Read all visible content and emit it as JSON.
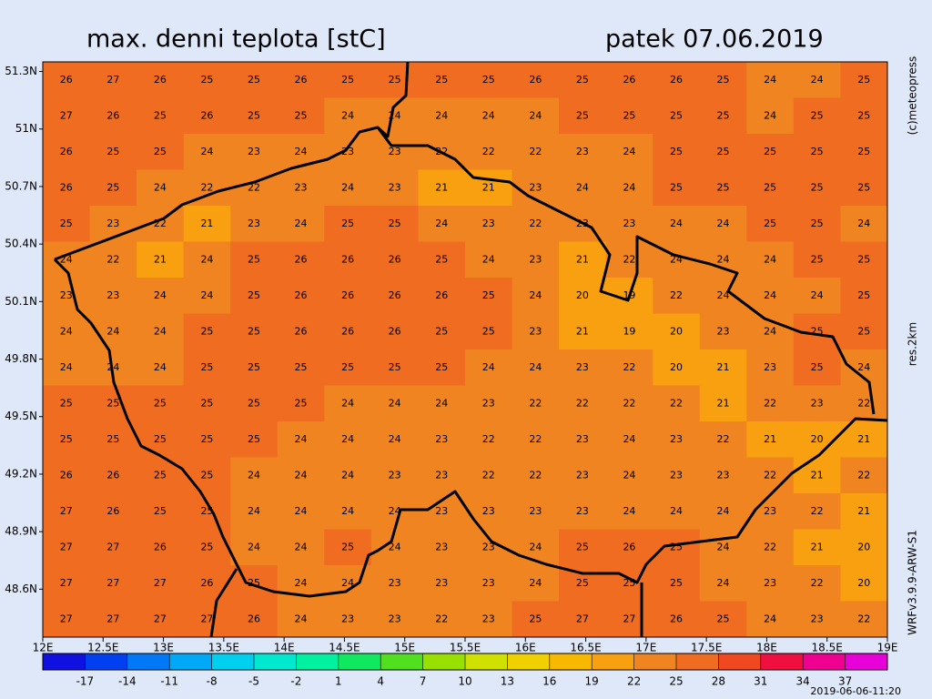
{
  "title": "max. denni teplota [stC]",
  "date": "patek 07.06.2019",
  "credits": [
    "(c)meteopress",
    "res.2km",
    "WRFv3.9.9-ARW-S1"
  ],
  "timestamp": "2019-06-06-11:20",
  "map": {
    "lon_range": [
      12,
      19
    ],
    "lat_range": [
      48.35,
      51.35
    ],
    "lon_ticks": [
      {
        "value": 12,
        "label": "12E"
      },
      {
        "value": 12.5,
        "label": "12.5E"
      },
      {
        "value": 13,
        "label": "13E"
      },
      {
        "value": 13.5,
        "label": "13.5E"
      },
      {
        "value": 14,
        "label": "14E"
      },
      {
        "value": 14.5,
        "label": "14.5E"
      },
      {
        "value": 15,
        "label": "15E"
      },
      {
        "value": 15.5,
        "label": "15.5E"
      },
      {
        "value": 16,
        "label": "16E"
      },
      {
        "value": 16.5,
        "label": "16.5E"
      },
      {
        "value": 17,
        "label": "17E"
      },
      {
        "value": 17.5,
        "label": "17.5E"
      },
      {
        "value": 18,
        "label": "18E"
      },
      {
        "value": 18.5,
        "label": "18.5E"
      },
      {
        "value": 19,
        "label": "19E"
      }
    ],
    "lat_ticks": [
      {
        "value": 51.3,
        "label": "51.3N"
      },
      {
        "value": 51,
        "label": "51N"
      },
      {
        "value": 50.7,
        "label": "50.7N"
      },
      {
        "value": 50.4,
        "label": "50.4N"
      },
      {
        "value": 50.1,
        "label": "50.1N"
      },
      {
        "value": 49.8,
        "label": "49.8N"
      },
      {
        "value": 49.5,
        "label": "49.5N"
      },
      {
        "value": 49.2,
        "label": "49.2N"
      },
      {
        "value": 48.9,
        "label": "48.9N"
      },
      {
        "value": 48.6,
        "label": "48.6N"
      }
    ],
    "field": [
      [
        26,
        27,
        26,
        25,
        25,
        26,
        25,
        25,
        25,
        25,
        26,
        25,
        26,
        26,
        25,
        24,
        24,
        25
      ],
      [
        27,
        26,
        25,
        26,
        25,
        25,
        24,
        24,
        24,
        24,
        24,
        25,
        25,
        25,
        25,
        24,
        25,
        25
      ],
      [
        26,
        25,
        25,
        24,
        23,
        24,
        23,
        23,
        22,
        22,
        22,
        23,
        24,
        25,
        25,
        25,
        25,
        25
      ],
      [
        26,
        25,
        24,
        22,
        22,
        23,
        24,
        23,
        21,
        21,
        23,
        24,
        24,
        25,
        25,
        25,
        25,
        25
      ],
      [
        25,
        23,
        22,
        21,
        23,
        24,
        25,
        25,
        24,
        23,
        22,
        23,
        23,
        24,
        24,
        25,
        25,
        24
      ],
      [
        24,
        22,
        21,
        24,
        25,
        26,
        26,
        26,
        25,
        24,
        23,
        21,
        22,
        24,
        24,
        24,
        25,
        25
      ],
      [
        23,
        23,
        24,
        24,
        25,
        26,
        26,
        26,
        26,
        25,
        24,
        20,
        19,
        22,
        24,
        24,
        24,
        25
      ],
      [
        24,
        24,
        24,
        25,
        25,
        26,
        26,
        26,
        25,
        25,
        23,
        21,
        19,
        20,
        23,
        24,
        25,
        25
      ],
      [
        24,
        24,
        24,
        25,
        25,
        25,
        25,
        25,
        25,
        24,
        24,
        23,
        22,
        20,
        21,
        23,
        25,
        24
      ],
      [
        25,
        25,
        25,
        25,
        25,
        25,
        24,
        24,
        24,
        23,
        22,
        22,
        22,
        22,
        21,
        22,
        23,
        22
      ],
      [
        25,
        25,
        25,
        25,
        25,
        24,
        24,
        24,
        23,
        22,
        22,
        23,
        24,
        23,
        22,
        21,
        20,
        21
      ],
      [
        26,
        26,
        25,
        25,
        24,
        24,
        24,
        23,
        23,
        22,
        22,
        23,
        24,
        23,
        23,
        22,
        21,
        22
      ],
      [
        27,
        26,
        25,
        25,
        24,
        24,
        24,
        24,
        23,
        23,
        23,
        23,
        24,
        24,
        24,
        23,
        22,
        21
      ],
      [
        27,
        27,
        26,
        25,
        24,
        24,
        25,
        24,
        23,
        23,
        24,
        25,
        26,
        25,
        24,
        22,
        21,
        20
      ],
      [
        27,
        27,
        27,
        26,
        25,
        24,
        24,
        23,
        23,
        23,
        24,
        25,
        25,
        25,
        24,
        23,
        22,
        20
      ],
      [
        27,
        27,
        27,
        27,
        26,
        24,
        23,
        23,
        22,
        23,
        25,
        27,
        27,
        26,
        25,
        24,
        23,
        22
      ]
    ]
  },
  "colorbar": {
    "range": [
      -20,
      40
    ],
    "ticks": [
      -17,
      -14,
      -11,
      -8,
      -5,
      -2,
      1,
      4,
      7,
      10,
      13,
      16,
      19,
      22,
      25,
      28,
      31,
      34,
      37
    ],
    "colors": [
      "#1010e0",
      "#0040f0",
      "#0078f8",
      "#00a8f8",
      "#00d0f0",
      "#00e8d0",
      "#00f0a0",
      "#10e860",
      "#50e020",
      "#98e000",
      "#d0e000",
      "#f0d000",
      "#f8b800",
      "#f8a010",
      "#f08420",
      "#f06c20",
      "#f04820",
      "#f01040",
      "#f00090",
      "#e800d8"
    ]
  }
}
